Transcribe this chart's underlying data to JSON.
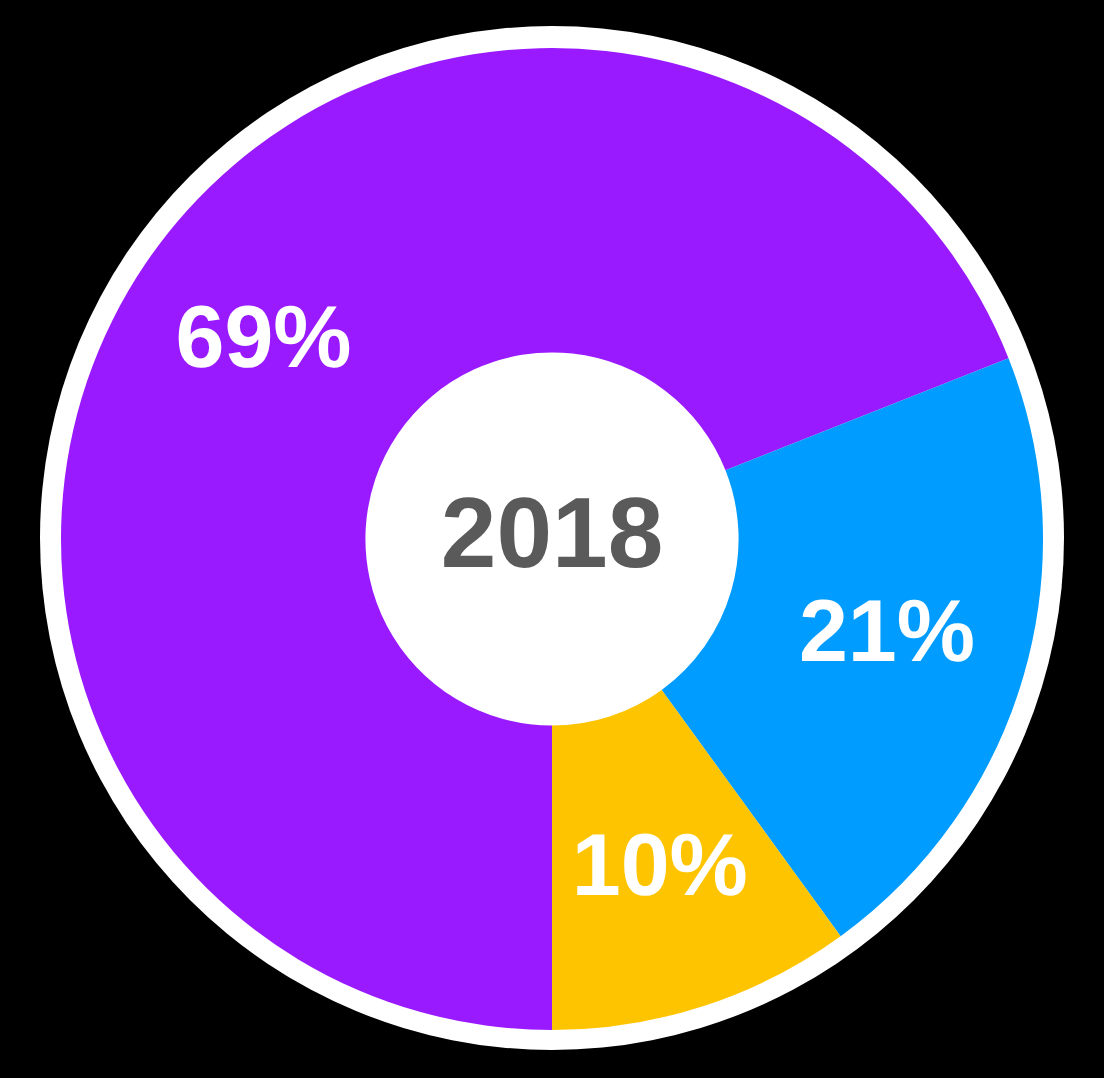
{
  "chart_data": {
    "type": "donut",
    "title": "2018",
    "categories": [
      null,
      null,
      null
    ],
    "values": [
      69,
      21,
      10
    ],
    "colors": [
      "#9a1aff",
      "#009cff",
      "#ffc400"
    ],
    "value_labels": [
      "69%",
      "21%",
      "10%"
    ],
    "legend": false
  }
}
